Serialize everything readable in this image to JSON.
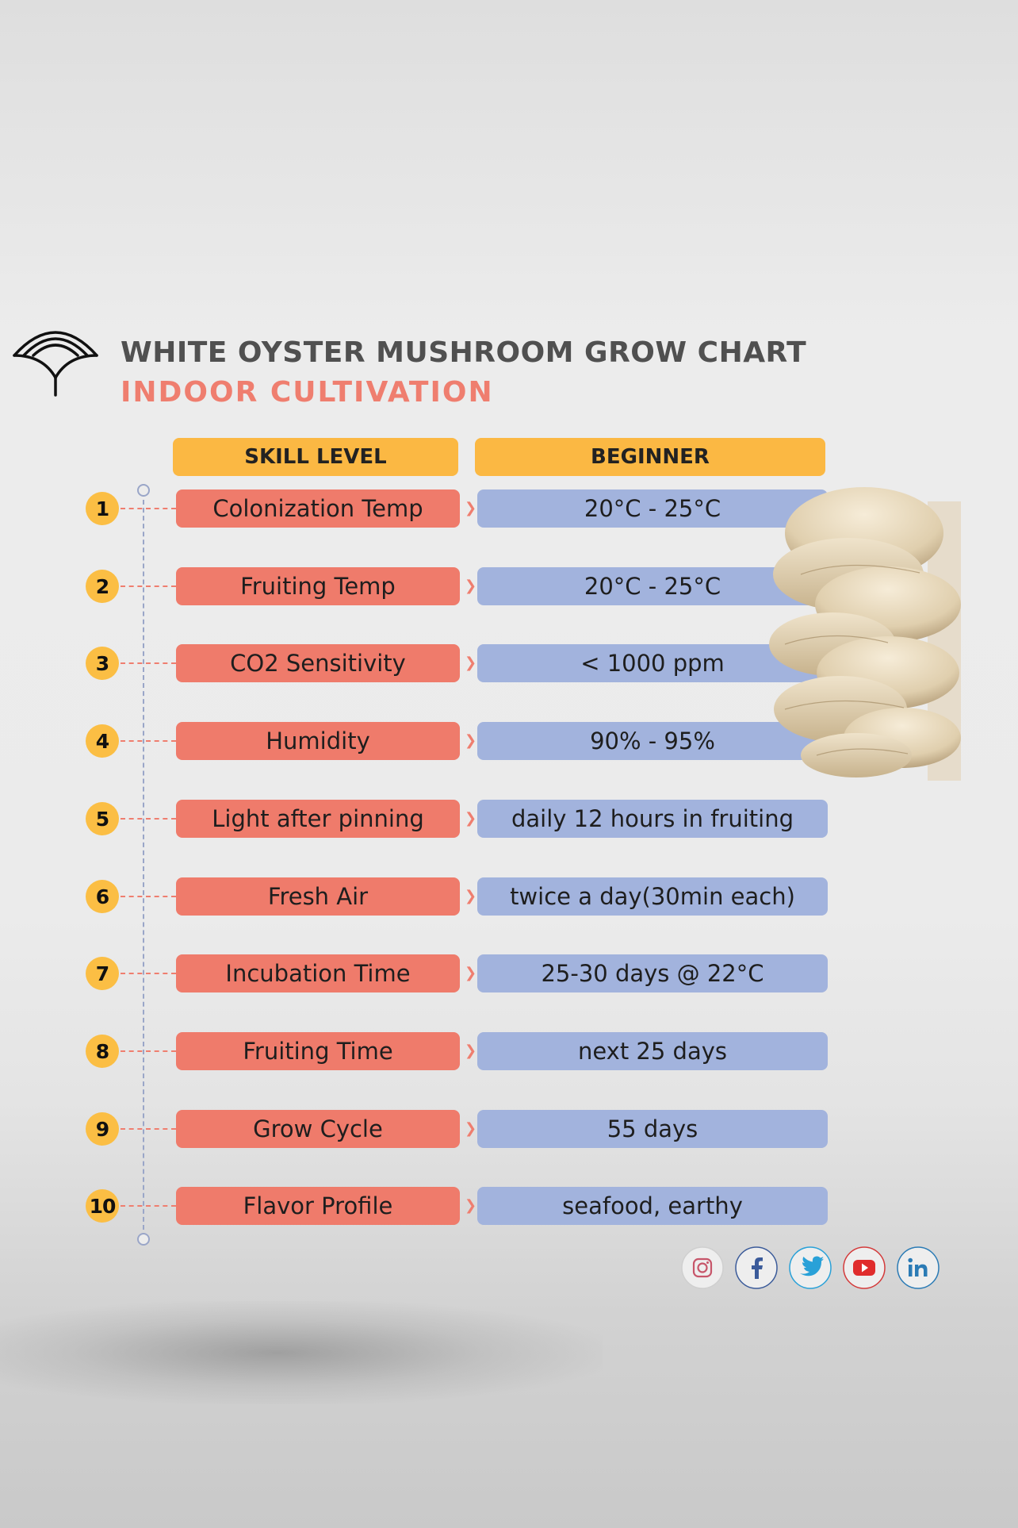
{
  "header": {
    "title": "WHITE OYSTER MUSHROOM GROW CHART",
    "subtitle": "INDOOR CULTIVATION"
  },
  "table": {
    "col_left": "SKILL LEVEL",
    "col_right": "BEGINNER",
    "rows": [
      {
        "num": "1",
        "label": "Colonization Temp",
        "value": "20°C - 25°C"
      },
      {
        "num": "2",
        "label": "Fruiting Temp",
        "value": "20°C - 25°C"
      },
      {
        "num": "3",
        "label": "CO2 Sensitivity",
        "value": "< 1000 ppm"
      },
      {
        "num": "4",
        "label": "Humidity",
        "value": "90% - 95%"
      },
      {
        "num": "5",
        "label": "Light after pinning",
        "value": "daily 12 hours in fruiting"
      },
      {
        "num": "6",
        "label": "Fresh Air",
        "value": "twice a day(30min each)"
      },
      {
        "num": "7",
        "label": "Incubation Time",
        "value": "25-30 days @ 22°C"
      },
      {
        "num": "8",
        "label": "Fruiting Time",
        "value": "next 25 days"
      },
      {
        "num": "9",
        "label": "Grow Cycle",
        "value": "55 days"
      },
      {
        "num": "10",
        "label": "Flavor Profile",
        "value": "seafood, earthy"
      }
    ]
  },
  "social": [
    "instagram-icon",
    "facebook-icon",
    "twitter-icon",
    "youtube-icon",
    "linkedin-icon"
  ],
  "colors": {
    "header_bg": "#fbb843",
    "label_bg": "#ef7b6b",
    "value_bg": "#a2b3dd",
    "subtitle": "#ef7e6f",
    "title": "#505050"
  }
}
